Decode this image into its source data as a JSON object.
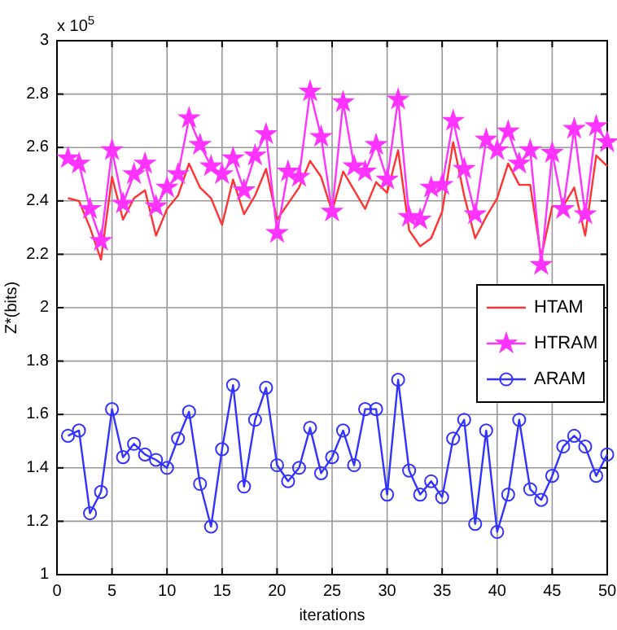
{
  "chart_data": {
    "type": "line",
    "xlabel": "iterations",
    "ylabel": "Z*(bits)",
    "annotations": [
      "x 10$^{5}$"
    ],
    "x": [
      1,
      2,
      3,
      4,
      5,
      6,
      7,
      8,
      9,
      10,
      11,
      12,
      13,
      14,
      15,
      16,
      17,
      18,
      19,
      20,
      21,
      22,
      23,
      24,
      25,
      26,
      27,
      28,
      29,
      30,
      31,
      32,
      33,
      34,
      35,
      36,
      37,
      38,
      39,
      40,
      41,
      42,
      43,
      44,
      45,
      46,
      47,
      48,
      49,
      50
    ],
    "xlim": [
      0,
      50
    ],
    "xticks": [
      0,
      5,
      10,
      15,
      20,
      25,
      30,
      35,
      40,
      45,
      50
    ],
    "ylim": [
      1,
      3
    ],
    "yticks": [
      1,
      1.2,
      1.4,
      1.6,
      1.8,
      2,
      2.2,
      2.4,
      2.6,
      2.8,
      3
    ],
    "grid": true,
    "legend": "right",
    "line_style": "solid",
    "series": [
      {
        "name": "HTAM",
        "color": "#ff3333",
        "marker": "none",
        "values": [
          2.41,
          2.4,
          2.3,
          2.18,
          2.49,
          2.33,
          2.41,
          2.44,
          2.27,
          2.37,
          2.42,
          2.54,
          2.45,
          2.41,
          2.31,
          2.48,
          2.35,
          2.42,
          2.52,
          2.33,
          2.39,
          2.45,
          2.55,
          2.49,
          2.36,
          2.51,
          2.44,
          2.37,
          2.47,
          2.43,
          2.59,
          2.29,
          2.23,
          2.26,
          2.36,
          2.62,
          2.42,
          2.26,
          2.34,
          2.41,
          2.54,
          2.46,
          2.46,
          2.19,
          2.38,
          2.38,
          2.45,
          2.27,
          2.57,
          2.53
        ]
      },
      {
        "name": "HTRAM",
        "color": "#ff33ff",
        "marker": "star",
        "values": [
          2.56,
          2.54,
          2.37,
          2.25,
          2.59,
          2.39,
          2.5,
          2.54,
          2.38,
          2.45,
          2.5,
          2.71,
          2.61,
          2.53,
          2.5,
          2.56,
          2.44,
          2.57,
          2.65,
          2.28,
          2.51,
          2.49,
          2.81,
          2.64,
          2.36,
          2.77,
          2.53,
          2.51,
          2.61,
          2.48,
          2.78,
          2.34,
          2.33,
          2.45,
          2.46,
          2.7,
          2.52,
          2.35,
          2.63,
          2.59,
          2.66,
          2.54,
          2.59,
          2.16,
          2.58,
          2.37,
          2.67,
          2.35,
          2.68,
          2.62
        ]
      },
      {
        "name": "ARAM",
        "color": "#3333ff",
        "marker": "circle",
        "values": [
          1.52,
          1.54,
          1.23,
          1.31,
          1.62,
          1.44,
          1.49,
          1.45,
          1.43,
          1.4,
          1.51,
          1.61,
          1.34,
          1.18,
          1.47,
          1.71,
          1.33,
          1.58,
          1.7,
          1.41,
          1.35,
          1.4,
          1.55,
          1.38,
          1.44,
          1.54,
          1.41,
          1.62,
          1.62,
          1.3,
          1.73,
          1.39,
          1.3,
          1.35,
          1.29,
          1.51,
          1.58,
          1.19,
          1.54,
          1.16,
          1.3,
          1.58,
          1.32,
          1.28,
          1.37,
          1.48,
          1.52,
          1.48,
          1.37,
          1.45
        ]
      }
    ]
  }
}
